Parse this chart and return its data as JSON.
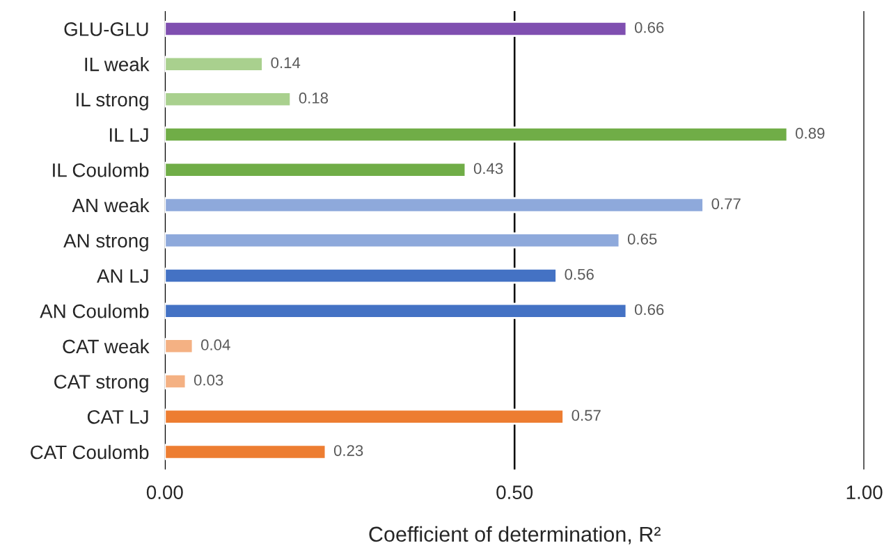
{
  "chart_data": {
    "type": "bar",
    "orientation": "horizontal",
    "xlabel": "Coefficient of determination, R²",
    "categories": [
      "GLU-GLU",
      "IL weak",
      "IL strong",
      "IL LJ",
      "IL Coulomb",
      "AN weak",
      "AN strong",
      "AN LJ",
      "AN Coulomb",
      "CAT weak",
      "CAT strong",
      "CAT LJ",
      "CAT Coulomb"
    ],
    "values": [
      0.66,
      0.14,
      0.18,
      0.89,
      0.43,
      0.77,
      0.65,
      0.56,
      0.66,
      0.04,
      0.03,
      0.57,
      0.23
    ],
    "colors": [
      "#7f4fb0",
      "#a9d08e",
      "#a9d08e",
      "#70ad47",
      "#70ad47",
      "#8ea9db",
      "#8ea9db",
      "#4472c4",
      "#4472c4",
      "#f4b183",
      "#f4b183",
      "#ed7d31",
      "#ed7d31"
    ],
    "xlim": [
      0,
      1
    ],
    "xticks": [
      {
        "value": 0,
        "label": "0.00"
      },
      {
        "value": 0.5,
        "label": "0.50"
      },
      {
        "value": 1,
        "label": "1.00"
      }
    ],
    "grid": "x",
    "data_labels": true
  }
}
